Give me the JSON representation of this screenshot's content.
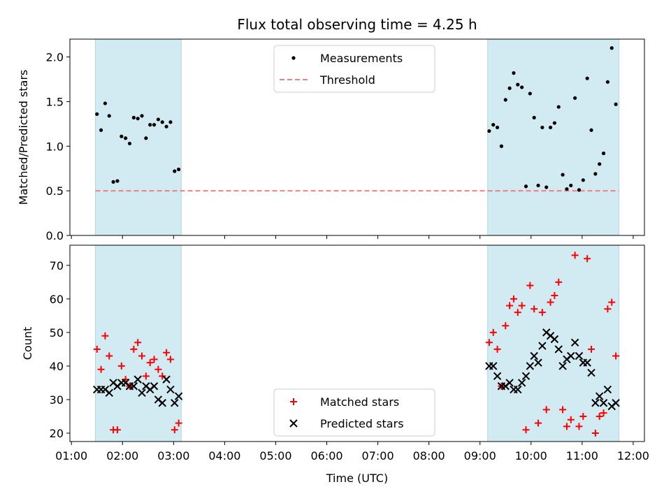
{
  "chart_data": {
    "type": "scatter",
    "title": "Flux total observing time = 4.25 h",
    "xlabel": "Time (UTC)",
    "x_ticks": [
      "01:00",
      "02:00",
      "03:00",
      "04:00",
      "05:00",
      "06:00",
      "07:00",
      "08:00",
      "09:00",
      "10:00",
      "11:00",
      "12:00"
    ],
    "x_tick_hours": [
      1,
      2,
      3,
      4,
      5,
      6,
      7,
      8,
      9,
      10,
      11,
      12
    ],
    "xlim_hours": [
      0.97,
      12.22
    ],
    "shaded_intervals_hours": [
      [
        1.47,
        3.15
      ],
      [
        9.15,
        11.72
      ]
    ],
    "colors": {
      "shade": "#add8e6",
      "measure": "#000000",
      "threshold": "#f08080",
      "matched": "#ff0000",
      "predicted": "#000000"
    },
    "panels": [
      {
        "ylabel": "Matched/Predicted stars",
        "ylim": [
          0,
          2.2
        ],
        "y_ticks": [
          "0.0",
          "0.5",
          "1.0",
          "1.5",
          "2.0"
        ],
        "y_tick_values": [
          0,
          0.5,
          1.0,
          1.5,
          2.0
        ],
        "legend": [
          "Measurements",
          "Threshold"
        ],
        "legend_position": "upper center",
        "threshold": {
          "value": 0.5,
          "x_range_hours": [
            1.47,
            11.72
          ]
        },
        "series": [
          {
            "name": "Measurements",
            "marker": "dot",
            "points": [
              [
                1.5,
                1.36
              ],
              [
                1.58,
                1.18
              ],
              [
                1.66,
                1.48
              ],
              [
                1.74,
                1.34
              ],
              [
                1.82,
                0.6
              ],
              [
                1.9,
                0.61
              ],
              [
                1.98,
                1.11
              ],
              [
                2.06,
                1.09
              ],
              [
                2.14,
                1.03
              ],
              [
                2.22,
                1.32
              ],
              [
                2.3,
                1.31
              ],
              [
                2.38,
                1.34
              ],
              [
                2.46,
                1.09
              ],
              [
                2.54,
                1.24
              ],
              [
                2.62,
                1.24
              ],
              [
                2.7,
                1.3
              ],
              [
                2.78,
                1.27
              ],
              [
                2.86,
                1.22
              ],
              [
                2.94,
                1.27
              ],
              [
                3.02,
                0.72
              ],
              [
                3.1,
                0.74
              ],
              [
                9.18,
                1.17
              ],
              [
                9.26,
                1.24
              ],
              [
                9.34,
                1.21
              ],
              [
                9.42,
                1.0
              ],
              [
                9.5,
                1.52
              ],
              [
                9.58,
                1.65
              ],
              [
                9.66,
                1.82
              ],
              [
                9.74,
                1.69
              ],
              [
                9.82,
                1.66
              ],
              [
                9.9,
                0.55
              ],
              [
                9.98,
                1.59
              ],
              [
                10.06,
                1.32
              ],
              [
                10.14,
                0.56
              ],
              [
                10.22,
                1.21
              ],
              [
                10.3,
                0.54
              ],
              [
                10.38,
                1.21
              ],
              [
                10.46,
                1.26
              ],
              [
                10.54,
                1.44
              ],
              [
                10.62,
                0.68
              ],
              [
                10.7,
                0.52
              ],
              [
                10.78,
                0.56
              ],
              [
                10.86,
                1.54
              ],
              [
                10.94,
                0.51
              ],
              [
                11.02,
                0.62
              ],
              [
                11.1,
                1.76
              ],
              [
                11.18,
                1.18
              ],
              [
                11.26,
                0.69
              ],
              [
                11.34,
                0.8
              ],
              [
                11.42,
                0.92
              ],
              [
                11.5,
                1.72
              ],
              [
                11.58,
                2.1
              ],
              [
                11.66,
                1.47
              ]
            ]
          }
        ]
      },
      {
        "ylabel": "Count",
        "ylim": [
          17.5,
          76
        ],
        "y_ticks": [
          "20",
          "30",
          "40",
          "50",
          "60",
          "70"
        ],
        "y_tick_values": [
          20,
          30,
          40,
          50,
          60,
          70
        ],
        "legend": [
          "Matched stars",
          "Predicted stars"
        ],
        "legend_position": "lower center",
        "series": [
          {
            "name": "Matched stars",
            "marker": "plus",
            "points": [
              [
                1.5,
                45
              ],
              [
                1.58,
                39
              ],
              [
                1.66,
                49
              ],
              [
                1.74,
                43
              ],
              [
                1.82,
                21
              ],
              [
                1.9,
                21
              ],
              [
                1.98,
                40
              ],
              [
                2.06,
                36
              ],
              [
                2.14,
                34
              ],
              [
                2.22,
                45
              ],
              [
                2.3,
                47
              ],
              [
                2.38,
                43
              ],
              [
                2.46,
                37
              ],
              [
                2.54,
                41
              ],
              [
                2.62,
                42
              ],
              [
                2.7,
                39
              ],
              [
                2.78,
                37
              ],
              [
                2.86,
                44
              ],
              [
                2.94,
                42
              ],
              [
                3.02,
                21
              ],
              [
                3.1,
                23
              ],
              [
                9.18,
                47
              ],
              [
                9.26,
                50
              ],
              [
                9.34,
                45
              ],
              [
                9.42,
                34
              ],
              [
                9.5,
                52
              ],
              [
                9.58,
                58
              ],
              [
                9.66,
                60
              ],
              [
                9.74,
                56
              ],
              [
                9.82,
                58
              ],
              [
                9.9,
                21
              ],
              [
                9.98,
                64
              ],
              [
                10.06,
                57
              ],
              [
                10.14,
                23
              ],
              [
                10.22,
                56
              ],
              [
                10.3,
                27
              ],
              [
                10.38,
                59
              ],
              [
                10.46,
                61
              ],
              [
                10.54,
                65
              ],
              [
                10.62,
                27
              ],
              [
                10.7,
                22
              ],
              [
                10.78,
                24
              ],
              [
                10.86,
                73
              ],
              [
                10.94,
                22
              ],
              [
                11.02,
                25
              ],
              [
                11.1,
                72
              ],
              [
                11.18,
                45
              ],
              [
                11.26,
                20
              ],
              [
                11.34,
                25
              ],
              [
                11.42,
                26
              ],
              [
                11.5,
                57
              ],
              [
                11.58,
                59
              ],
              [
                11.66,
                43
              ]
            ]
          },
          {
            "name": "Predicted stars",
            "marker": "x",
            "points": [
              [
                1.5,
                33
              ],
              [
                1.58,
                33
              ],
              [
                1.66,
                33
              ],
              [
                1.74,
                32
              ],
              [
                1.82,
                35
              ],
              [
                1.9,
                34
              ],
              [
                1.98,
                35
              ],
              [
                2.06,
                35
              ],
              [
                2.14,
                34
              ],
              [
                2.22,
                34
              ],
              [
                2.3,
                36
              ],
              [
                2.38,
                32
              ],
              [
                2.46,
                34
              ],
              [
                2.54,
                33
              ],
              [
                2.62,
                34
              ],
              [
                2.7,
                30
              ],
              [
                2.78,
                29
              ],
              [
                2.86,
                36
              ],
              [
                2.94,
                33
              ],
              [
                3.02,
                29
              ],
              [
                3.1,
                31
              ],
              [
                9.18,
                40
              ],
              [
                9.26,
                40
              ],
              [
                9.34,
                37
              ],
              [
                9.42,
                34
              ],
              [
                9.5,
                34
              ],
              [
                9.58,
                35
              ],
              [
                9.66,
                33
              ],
              [
                9.74,
                33
              ],
              [
                9.82,
                35
              ],
              [
                9.9,
                37
              ],
              [
                9.98,
                40
              ],
              [
                10.06,
                43
              ],
              [
                10.14,
                41
              ],
              [
                10.22,
                46
              ],
              [
                10.3,
                50
              ],
              [
                10.38,
                49
              ],
              [
                10.46,
                48
              ],
              [
                10.54,
                45
              ],
              [
                10.62,
                40
              ],
              [
                10.7,
                42
              ],
              [
                10.78,
                43
              ],
              [
                10.86,
                47
              ],
              [
                10.94,
                43
              ],
              [
                11.02,
                41
              ],
              [
                11.1,
                41
              ],
              [
                11.18,
                38
              ],
              [
                11.26,
                29
              ],
              [
                11.34,
                31
              ],
              [
                11.42,
                29
              ],
              [
                11.5,
                33
              ],
              [
                11.58,
                28
              ],
              [
                11.66,
                29
              ]
            ]
          }
        ]
      }
    ]
  }
}
